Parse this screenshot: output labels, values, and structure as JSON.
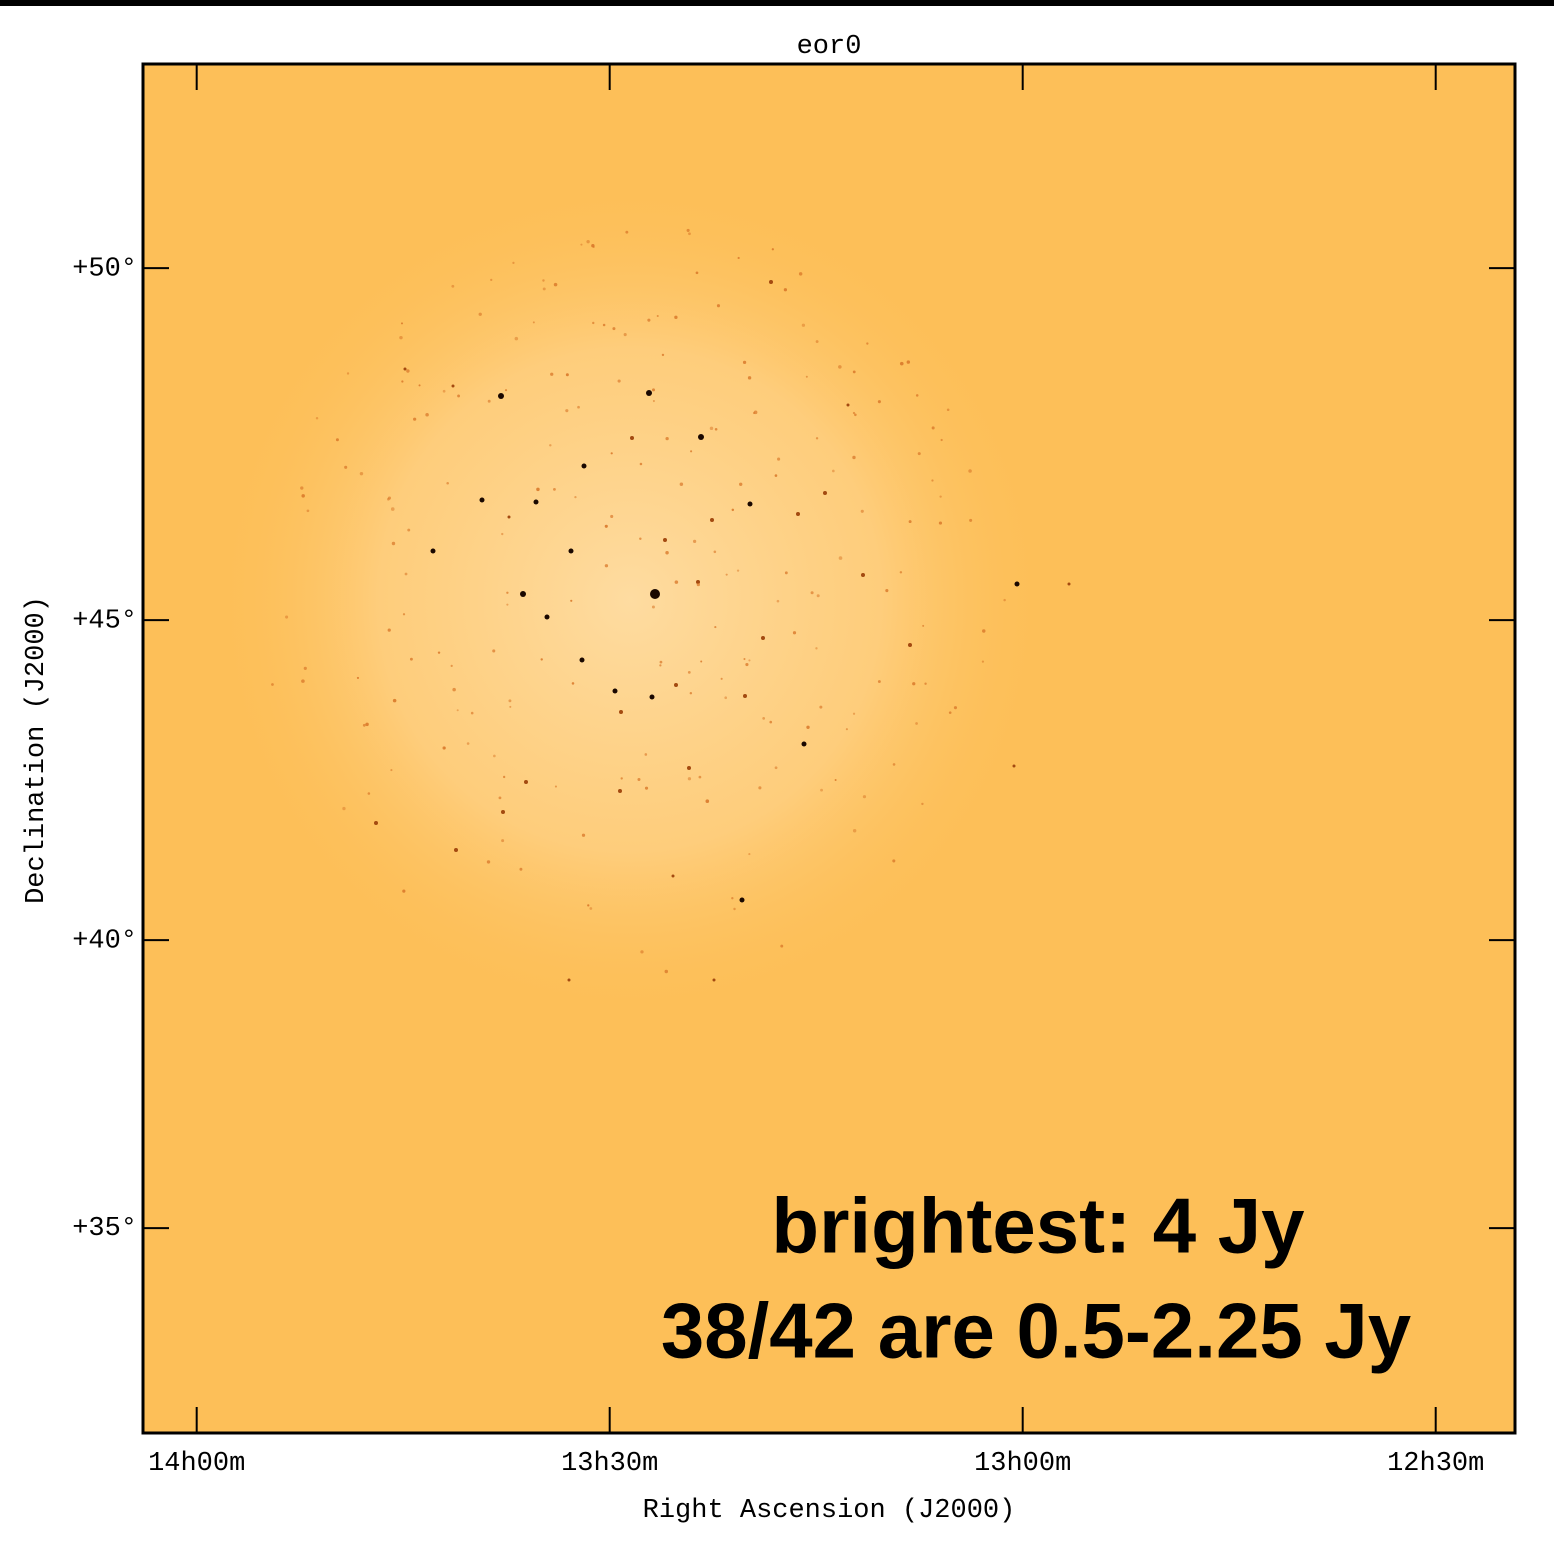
{
  "chart_data": {
    "type": "sky-image",
    "title": "eor0",
    "x_label": "Right Ascension (J2000)",
    "y_label": "Declination (J2000)",
    "xlim": [
      14.065,
      12.404
    ],
    "xticks": [
      {
        "value": 14,
        "label": "14h00m"
      },
      {
        "value": 13.5,
        "label": "13h30m"
      },
      {
        "value": 13,
        "label": "13h00m"
      },
      {
        "value": 12.5,
        "label": "12h30m"
      }
    ],
    "ylim": [
      31.05,
      52.71
    ],
    "yticks": [
      {
        "value": 35,
        "label": "+35°"
      },
      {
        "value": 40,
        "label": "+40°"
      },
      {
        "value": 45,
        "label": "+45°"
      },
      {
        "value": 50,
        "label": "+50°"
      }
    ],
    "color": "#fdbf58",
    "annotations": [
      "brightest: 4 Jy",
      "38/42 are 0.5-2.25 Jy"
    ]
  }
}
